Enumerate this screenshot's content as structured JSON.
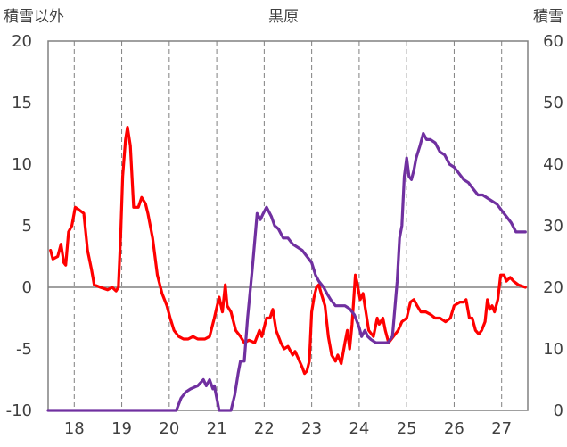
{
  "chart_data": {
    "type": "line",
    "title": "黒原",
    "left_axis_label": "積雪以外",
    "right_axis_label": "積雪",
    "x_range": [
      17.45,
      27.55
    ],
    "x_ticks": [
      18,
      19,
      20,
      21,
      22,
      23,
      24,
      25,
      26,
      27
    ],
    "x_tick_labels": [
      "18",
      "19",
      "20",
      "21",
      "22",
      "23",
      "24",
      "25",
      "26",
      "27"
    ],
    "y_left": {
      "min": -10,
      "max": 20,
      "ticks": [
        -10,
        -5,
        0,
        5,
        10,
        15,
        20
      ],
      "tick_labels": [
        "-10",
        "-5",
        "0",
        "5",
        "10",
        "15",
        "20"
      ]
    },
    "y_right": {
      "min": 0,
      "max": 60,
      "ticks": [
        0,
        10,
        20,
        30,
        40,
        50,
        60
      ],
      "tick_labels": [
        "0",
        "10",
        "20",
        "30",
        "40",
        "50",
        "60"
      ]
    },
    "grid": {
      "vertical": "dashed",
      "horizontal": "solid"
    },
    "series": [
      {
        "axis": "left",
        "color": "#ff0000",
        "points": [
          [
            17.5,
            3.0
          ],
          [
            17.55,
            2.3
          ],
          [
            17.65,
            2.5
          ],
          [
            17.72,
            3.5
          ],
          [
            17.78,
            2.0
          ],
          [
            17.82,
            1.8
          ],
          [
            17.88,
            4.5
          ],
          [
            17.95,
            5.0
          ],
          [
            18.02,
            6.5
          ],
          [
            18.1,
            6.3
          ],
          [
            18.2,
            6.0
          ],
          [
            18.28,
            3.0
          ],
          [
            18.36,
            1.5
          ],
          [
            18.42,
            0.2
          ],
          [
            18.55,
            0.0
          ],
          [
            18.7,
            -0.2
          ],
          [
            18.8,
            0.0
          ],
          [
            18.88,
            -0.3
          ],
          [
            18.93,
            0.0
          ],
          [
            18.98,
            4.5
          ],
          [
            19.02,
            9.0
          ],
          [
            19.08,
            12.0
          ],
          [
            19.12,
            13.0
          ],
          [
            19.18,
            11.5
          ],
          [
            19.25,
            6.5
          ],
          [
            19.35,
            6.5
          ],
          [
            19.42,
            7.3
          ],
          [
            19.5,
            6.8
          ],
          [
            19.55,
            6.0
          ],
          [
            19.65,
            4.0
          ],
          [
            19.75,
            1.0
          ],
          [
            19.85,
            -0.5
          ],
          [
            19.95,
            -1.5
          ],
          [
            20.02,
            -2.5
          ],
          [
            20.1,
            -3.5
          ],
          [
            20.2,
            -4.0
          ],
          [
            20.3,
            -4.2
          ],
          [
            20.4,
            -4.2
          ],
          [
            20.5,
            -4.0
          ],
          [
            20.6,
            -4.2
          ],
          [
            20.75,
            -4.2
          ],
          [
            20.85,
            -4.0
          ],
          [
            20.95,
            -2.5
          ],
          [
            21.05,
            -0.8
          ],
          [
            21.12,
            -2.0
          ],
          [
            21.18,
            0.2
          ],
          [
            21.22,
            -1.5
          ],
          [
            21.3,
            -2.0
          ],
          [
            21.4,
            -3.5
          ],
          [
            21.5,
            -4.0
          ],
          [
            21.58,
            -4.5
          ],
          [
            21.68,
            -4.3
          ],
          [
            21.8,
            -4.5
          ],
          [
            21.9,
            -3.5
          ],
          [
            21.95,
            -4.0
          ],
          [
            22.05,
            -2.5
          ],
          [
            22.12,
            -2.5
          ],
          [
            22.18,
            -1.8
          ],
          [
            22.25,
            -3.5
          ],
          [
            22.35,
            -4.5
          ],
          [
            22.42,
            -5.0
          ],
          [
            22.5,
            -4.8
          ],
          [
            22.6,
            -5.5
          ],
          [
            22.65,
            -5.2
          ],
          [
            22.72,
            -5.8
          ],
          [
            22.8,
            -6.5
          ],
          [
            22.85,
            -7.0
          ],
          [
            22.9,
            -6.8
          ],
          [
            22.95,
            -6.0
          ],
          [
            23.0,
            -2.0
          ],
          [
            23.05,
            -0.8
          ],
          [
            23.1,
            0.0
          ],
          [
            23.15,
            0.2
          ],
          [
            23.2,
            -0.5
          ],
          [
            23.28,
            -1.5
          ],
          [
            23.35,
            -4.0
          ],
          [
            23.42,
            -5.5
          ],
          [
            23.5,
            -6.0
          ],
          [
            23.55,
            -5.5
          ],
          [
            23.62,
            -6.2
          ],
          [
            23.7,
            -4.5
          ],
          [
            23.75,
            -3.5
          ],
          [
            23.8,
            -5.0
          ],
          [
            23.85,
            -3.0
          ],
          [
            23.92,
            1.0
          ],
          [
            23.95,
            0.5
          ],
          [
            24.02,
            -1.0
          ],
          [
            24.08,
            -0.5
          ],
          [
            24.12,
            -1.5
          ],
          [
            24.2,
            -3.5
          ],
          [
            24.3,
            -4.0
          ],
          [
            24.38,
            -2.5
          ],
          [
            24.42,
            -3.0
          ],
          [
            24.5,
            -2.5
          ],
          [
            24.55,
            -3.5
          ],
          [
            24.62,
            -4.5
          ],
          [
            24.72,
            -4.0
          ],
          [
            24.82,
            -3.5
          ],
          [
            24.9,
            -2.8
          ],
          [
            25.0,
            -2.5
          ],
          [
            25.08,
            -1.2
          ],
          [
            25.15,
            -1.0
          ],
          [
            25.22,
            -1.5
          ],
          [
            25.3,
            -2.0
          ],
          [
            25.4,
            -2.0
          ],
          [
            25.5,
            -2.2
          ],
          [
            25.6,
            -2.5
          ],
          [
            25.7,
            -2.5
          ],
          [
            25.82,
            -2.8
          ],
          [
            25.92,
            -2.5
          ],
          [
            26.0,
            -1.5
          ],
          [
            26.12,
            -1.2
          ],
          [
            26.2,
            -1.2
          ],
          [
            26.25,
            -1.0
          ],
          [
            26.32,
            -2.5
          ],
          [
            26.38,
            -2.5
          ],
          [
            26.45,
            -3.5
          ],
          [
            26.52,
            -3.8
          ],
          [
            26.58,
            -3.5
          ],
          [
            26.65,
            -2.8
          ],
          [
            26.7,
            -1.0
          ],
          [
            26.75,
            -1.8
          ],
          [
            26.8,
            -1.5
          ],
          [
            26.85,
            -2.0
          ],
          [
            26.92,
            -1.0
          ],
          [
            26.98,
            1.0
          ],
          [
            27.05,
            1.0
          ],
          [
            27.1,
            0.5
          ],
          [
            27.18,
            0.8
          ],
          [
            27.25,
            0.5
          ],
          [
            27.35,
            0.2
          ],
          [
            27.5,
            0.0
          ]
        ]
      },
      {
        "axis": "right",
        "color": "#7030a0",
        "points": [
          [
            17.45,
            0.0
          ],
          [
            19.95,
            0.0
          ],
          [
            20.15,
            0.0
          ],
          [
            20.25,
            2.0
          ],
          [
            20.35,
            3.0
          ],
          [
            20.45,
            3.5
          ],
          [
            20.6,
            4.0
          ],
          [
            20.72,
            5.0
          ],
          [
            20.78,
            4.0
          ],
          [
            20.85,
            5.0
          ],
          [
            20.92,
            3.5
          ],
          [
            20.95,
            4.0
          ],
          [
            21.05,
            0.0
          ],
          [
            21.3,
            0.0
          ],
          [
            21.38,
            2.5
          ],
          [
            21.45,
            6.0
          ],
          [
            21.5,
            8.0
          ],
          [
            21.58,
            8.0
          ],
          [
            21.65,
            15.0
          ],
          [
            21.75,
            23.0
          ],
          [
            21.85,
            32.0
          ],
          [
            21.92,
            31.0
          ],
          [
            21.98,
            32.0
          ],
          [
            22.05,
            33.0
          ],
          [
            22.15,
            31.5
          ],
          [
            22.22,
            30.0
          ],
          [
            22.3,
            29.5
          ],
          [
            22.4,
            28.0
          ],
          [
            22.5,
            28.0
          ],
          [
            22.6,
            27.0
          ],
          [
            22.7,
            26.5
          ],
          [
            22.8,
            26.0
          ],
          [
            22.9,
            25.0
          ],
          [
            23.0,
            24.0
          ],
          [
            23.08,
            22.0
          ],
          [
            23.15,
            21.0
          ],
          [
            23.25,
            20.0
          ],
          [
            23.32,
            19.0
          ],
          [
            23.4,
            18.0
          ],
          [
            23.5,
            17.0
          ],
          [
            23.6,
            17.0
          ],
          [
            23.7,
            17.0
          ],
          [
            23.8,
            16.5
          ],
          [
            23.9,
            15.5
          ],
          [
            24.0,
            13.5
          ],
          [
            24.05,
            12.0
          ],
          [
            24.12,
            13.0
          ],
          [
            24.18,
            12.0
          ],
          [
            24.25,
            11.5
          ],
          [
            24.35,
            11.0
          ],
          [
            24.45,
            11.0
          ],
          [
            24.6,
            11.0
          ],
          [
            24.7,
            12.0
          ],
          [
            24.8,
            21.0
          ],
          [
            24.85,
            28.0
          ],
          [
            24.9,
            30.0
          ],
          [
            24.95,
            38.0
          ],
          [
            25.0,
            41.0
          ],
          [
            25.05,
            38.0
          ],
          [
            25.1,
            37.5
          ],
          [
            25.15,
            39.0
          ],
          [
            25.2,
            41.0
          ],
          [
            25.28,
            43.0
          ],
          [
            25.35,
            45.0
          ],
          [
            25.42,
            44.0
          ],
          [
            25.5,
            44.0
          ],
          [
            25.6,
            43.5
          ],
          [
            25.7,
            42.0
          ],
          [
            25.8,
            41.5
          ],
          [
            25.9,
            40.0
          ],
          [
            26.0,
            39.5
          ],
          [
            26.1,
            38.5
          ],
          [
            26.2,
            37.5
          ],
          [
            26.3,
            37.0
          ],
          [
            26.4,
            36.0
          ],
          [
            26.5,
            35.0
          ],
          [
            26.6,
            35.0
          ],
          [
            26.7,
            34.5
          ],
          [
            26.8,
            34.0
          ],
          [
            26.9,
            33.5
          ],
          [
            27.0,
            32.5
          ],
          [
            27.1,
            31.5
          ],
          [
            27.2,
            30.5
          ],
          [
            27.3,
            29.0
          ],
          [
            27.5,
            29.0
          ]
        ]
      }
    ]
  }
}
